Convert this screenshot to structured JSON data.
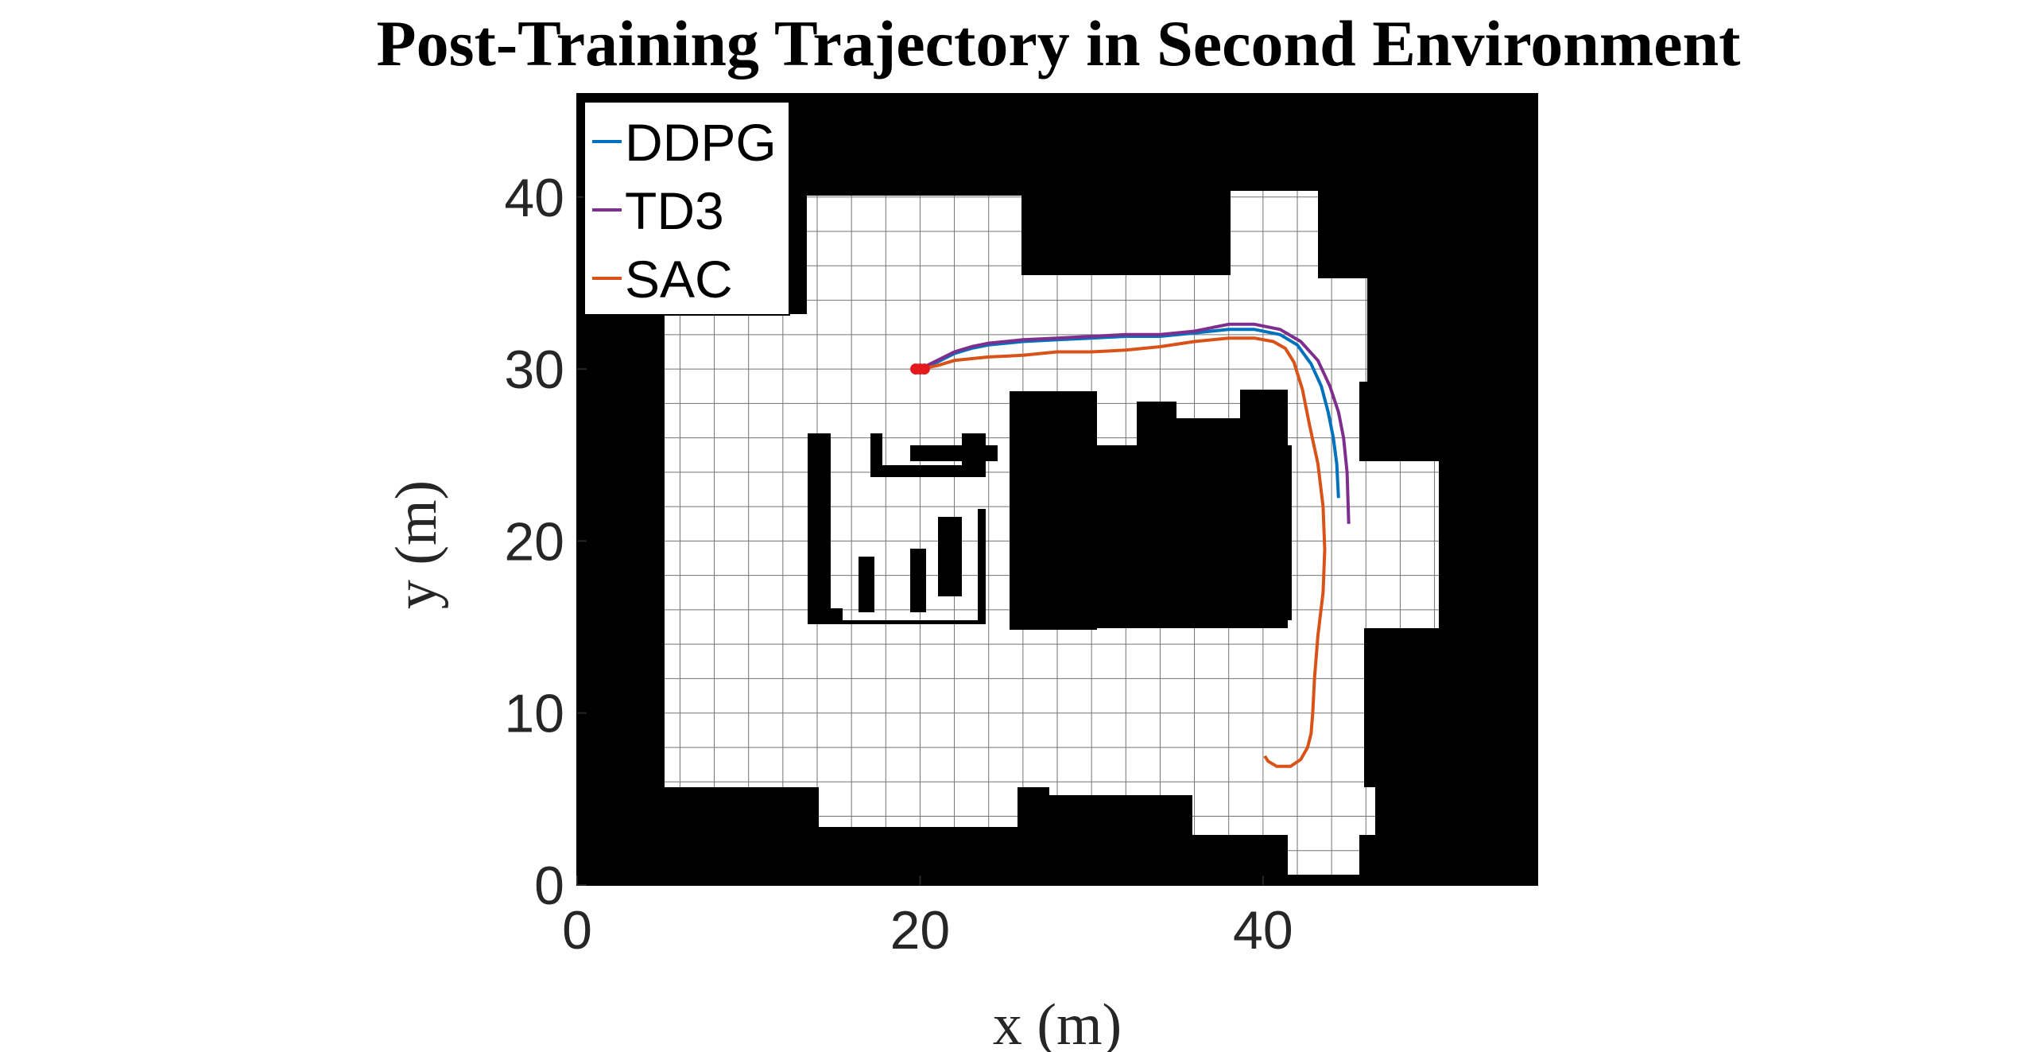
{
  "chart_data": {
    "type": "line",
    "title": "Post-Training Trajectory in Second Environment",
    "xlabel": "x (m)",
    "ylabel": "y (m)",
    "xlim": [
      0,
      56
    ],
    "ylim": [
      0,
      46
    ],
    "xticks": [
      0,
      20,
      40
    ],
    "yticks": [
      0,
      10,
      20,
      30,
      40
    ],
    "grid": true,
    "background": "occupancy map",
    "legend_location": "top-left",
    "start_marker": {
      "x": 20,
      "y": 30,
      "color": "#e41a1c"
    },
    "series": [
      {
        "name": "DDPG",
        "color": "#0072BD",
        "x": [
          20,
          21,
          22,
          23,
          24,
          26,
          28,
          30,
          32,
          34,
          36,
          38,
          39.5,
          41,
          42,
          42.8,
          43.4,
          43.8,
          44.1,
          44.3,
          44.4
        ],
        "y": [
          30,
          30.4,
          30.9,
          31.2,
          31.4,
          31.6,
          31.7,
          31.8,
          31.9,
          31.9,
          32.1,
          32.3,
          32.3,
          32,
          31.4,
          30.3,
          29,
          27.5,
          26,
          24.5,
          22.5
        ]
      },
      {
        "name": "TD3",
        "color": "#7E2F8E",
        "x": [
          20,
          21,
          22,
          23,
          24,
          26,
          28,
          30,
          32,
          34,
          36,
          38,
          39.5,
          41,
          42.2,
          43.2,
          43.9,
          44.4,
          44.7,
          44.9,
          45.0
        ],
        "y": [
          30,
          30.5,
          31,
          31.3,
          31.5,
          31.7,
          31.8,
          31.9,
          32,
          32,
          32.2,
          32.6,
          32.6,
          32.3,
          31.6,
          30.5,
          29,
          27.5,
          26,
          24,
          21
        ]
      },
      {
        "name": "SAC",
        "color": "#D95319",
        "x": [
          20,
          21,
          22,
          24,
          26,
          28,
          30,
          32,
          34,
          36,
          38,
          39.5,
          40.6,
          41.3,
          41.8,
          42.3,
          42.7,
          43.2,
          43.5,
          43.6,
          43.5,
          43.2,
          43.0,
          42.9,
          42.8,
          42.6,
          42.2,
          41.6,
          40.8,
          40.3,
          40.1
        ],
        "y": [
          30,
          30.2,
          30.5,
          30.7,
          30.8,
          31,
          31,
          31.1,
          31.3,
          31.6,
          31.8,
          31.8,
          31.6,
          31.2,
          30.4,
          28.8,
          26.8,
          24.5,
          22,
          19.5,
          17,
          14.5,
          12,
          10,
          8.8,
          8,
          7.3,
          6.9,
          6.9,
          7.2,
          7.5
        ]
      }
    ]
  }
}
